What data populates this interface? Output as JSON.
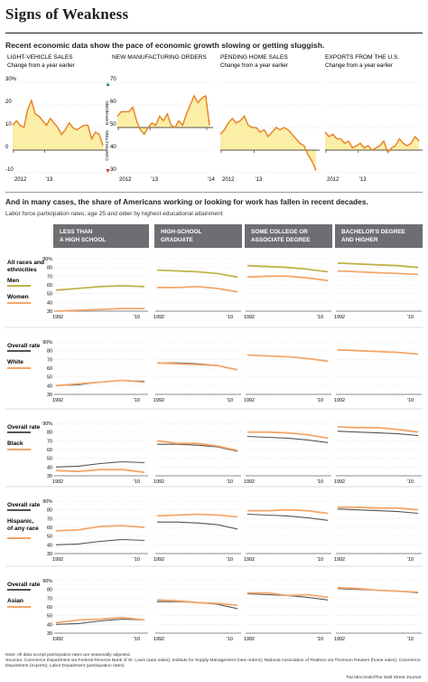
{
  "title": "Signs of Weakness",
  "subtitle1": "Recent economic data show the pace of economic growth slowing or getting sluggish.",
  "colors": {
    "fill_yellow": "#fbeea6",
    "line_orange": "#e8852b",
    "olive": "#c0b24a",
    "light_orange": "#f4a66a",
    "dark_gray": "#555555",
    "header_gray": "#6d6e71"
  },
  "top_charts": [
    {
      "title": "LIGHT-VEHICLE SALES",
      "subtitle": "Change from a year earlier",
      "yticks": [
        "30%",
        "20",
        "10",
        "0",
        "-10"
      ],
      "xlabels": [
        "2012",
        "'13"
      ],
      "ylim": [
        -10,
        30
      ],
      "chart_data": {
        "type": "area",
        "values": [
          11,
          13,
          11,
          10,
          18,
          22,
          16,
          15,
          13,
          11,
          14,
          12,
          10,
          7,
          9,
          12,
          10,
          9,
          10,
          11,
          11,
          5,
          8,
          7,
          2
        ]
      }
    },
    {
      "title": "NEW MANUFACTURING ORDERS",
      "yticks": [
        "70",
        "60",
        "50",
        "40",
        "30"
      ],
      "xlabels": [
        "2012",
        "'13",
        "'14"
      ],
      "ylim": [
        30,
        70
      ],
      "baseline": 50,
      "axis_label_up": "EXPANDING",
      "axis_label_down": "CONTRACTING",
      "chart_data": {
        "type": "area",
        "values": [
          55,
          57,
          57,
          57,
          59,
          53,
          49,
          47,
          50,
          52,
          51,
          55,
          53,
          56,
          51,
          50,
          53,
          51,
          56,
          60,
          64,
          61,
          63,
          64,
          51
        ]
      }
    },
    {
      "title": "PENDING HOME SALES",
      "subtitle": "Change from a year earlier",
      "yticks": [],
      "xlabels": [
        "2012",
        "'13"
      ],
      "ylim": [
        -10,
        30
      ],
      "chart_data": {
        "type": "area",
        "values": [
          7,
          9,
          12,
          14,
          12,
          13,
          15,
          11,
          10,
          10,
          8,
          9,
          6,
          8,
          10,
          9,
          10,
          9,
          7,
          5,
          3,
          2,
          -2,
          -5,
          -9
        ]
      }
    },
    {
      "title": "EXPORTS FROM THE U.S.",
      "subtitle": "Change from a year earlier",
      "yticks": [],
      "xlabels": [
        "2012",
        "'13"
      ],
      "ylim": [
        -10,
        30
      ],
      "chart_data": {
        "type": "area",
        "values": [
          8,
          6,
          7,
          5,
          5,
          3,
          4,
          1,
          2,
          3,
          1,
          2,
          0,
          1,
          2,
          4,
          -1,
          1,
          2,
          5,
          3,
          2,
          3,
          6,
          4
        ]
      }
    }
  ],
  "section2_title": "And in many cases, the share of Americans working or looking for work has fallen in recent decades.",
  "section2_note": "Labor force participation rates; age 25 and older by highest educational attainment",
  "column_headers": [
    {
      "line1": "LESS THAN",
      "line2": "A HIGH SCHOOL"
    },
    {
      "line1": "HIGH-SCHOOL",
      "line2": "GRADUATE"
    },
    {
      "line1": "SOME COLLEGE OR",
      "line2": "ASSOCIATE DEGREE"
    },
    {
      "line1": "BACHELOR'S DEGREE",
      "line2": "AND HIGHER"
    }
  ],
  "yticks_small": [
    "90%",
    "80",
    "70",
    "60",
    "50",
    "40",
    "30"
  ],
  "xticks_small": [
    "1992",
    "'10"
  ],
  "rows": [
    {
      "title_lines": [
        "All races and",
        "ethnicities"
      ],
      "label1": "Men",
      "label2": "Women",
      "chart_data": {
        "type": "line",
        "x": [
          1992,
          2014
        ],
        "series": [
          {
            "name": "Men",
            "panels": [
              [
                54,
                56,
                58,
                59,
                58
              ],
              [
                77,
                76,
                75,
                73,
                69
              ],
              [
                82,
                81,
                80,
                78,
                75
              ],
              [
                85,
                84,
                83,
                82,
                80
              ]
            ]
          },
          {
            "name": "Women",
            "panels": [
              [
                30,
                31,
                32,
                33,
                33
              ],
              [
                57,
                57,
                58,
                56,
                52
              ],
              [
                69,
                70,
                70,
                68,
                65
              ],
              [
                76,
                75,
                74,
                73,
                72
              ]
            ]
          }
        ]
      }
    },
    {
      "label1": "Overall rate",
      "label2": "White",
      "chart_data": {
        "type": "line",
        "x": [
          1992,
          2014
        ],
        "series": [
          {
            "name": "Overall rate",
            "panels": [
              [
                40,
                41,
                44,
                46,
                45
              ],
              [
                66,
                66,
                65,
                63,
                58
              ],
              [
                75,
                74,
                73,
                71,
                68
              ],
              [
                81,
                80,
                79,
                78,
                76
              ]
            ]
          },
          {
            "name": "White",
            "panels": [
              [
                40,
                42,
                44,
                46,
                44
              ],
              [
                66,
                65,
                64,
                63,
                58
              ],
              [
                75,
                74,
                73,
                71,
                68
              ],
              [
                81,
                80,
                79,
                78,
                76
              ]
            ]
          }
        ]
      }
    },
    {
      "label1": "Overall rate",
      "label2": "Black",
      "chart_data": {
        "type": "line",
        "x": [
          1992,
          2014
        ],
        "series": [
          {
            "name": "Overall rate",
            "panels": [
              [
                40,
                41,
                44,
                46,
                45
              ],
              [
                66,
                66,
                65,
                63,
                58
              ],
              [
                75,
                74,
                73,
                71,
                68
              ],
              [
                81,
                80,
                79,
                78,
                76
              ]
            ]
          },
          {
            "name": "Black",
            "panels": [
              [
                36,
                35,
                37,
                37,
                34
              ],
              [
                70,
                67,
                67,
                64,
                59
              ],
              [
                80,
                80,
                79,
                77,
                73
              ],
              [
                86,
                85,
                85,
                83,
                80
              ]
            ]
          }
        ]
      }
    },
    {
      "label1": "Overall rate",
      "label2_lines": [
        "Hispanic,",
        "of any race"
      ],
      "chart_data": {
        "type": "line",
        "x": [
          1992,
          2014
        ],
        "series": [
          {
            "name": "Overall rate",
            "panels": [
              [
                40,
                41,
                44,
                46,
                45
              ],
              [
                66,
                66,
                65,
                63,
                58
              ],
              [
                75,
                74,
                73,
                71,
                68
              ],
              [
                81,
                80,
                79,
                78,
                76
              ]
            ]
          },
          {
            "name": "Hispanic, of any race",
            "panels": [
              [
                56,
                57,
                61,
                62,
                60
              ],
              [
                73,
                74,
                75,
                74,
                72
              ],
              [
                79,
                79,
                80,
                79,
                76
              ],
              [
                83,
                83,
                82,
                82,
                80
              ]
            ]
          }
        ]
      }
    },
    {
      "label1": "Overall rate",
      "label2": "Asian",
      "chart_data": {
        "type": "line",
        "x": [
          1992,
          2014
        ],
        "series": [
          {
            "name": "Overall rate",
            "panels": [
              [
                40,
                41,
                44,
                46,
                45
              ],
              [
                66,
                66,
                65,
                63,
                58
              ],
              [
                75,
                74,
                73,
                71,
                68
              ],
              [
                81,
                80,
                79,
                78,
                76
              ]
            ]
          },
          {
            "name": "Asian",
            "panels": [
              [
                42,
                45,
                46,
                48,
                45
              ],
              [
                68,
                67,
                65,
                64,
                62
              ],
              [
                76,
                76,
                73,
                74,
                71
              ],
              [
                82,
                81,
                79,
                78,
                77
              ]
            ]
          }
        ]
      }
    }
  ],
  "footnote": "Note: All data except participation rates are seasonally adjusted.",
  "sources": "Sources: Commerce Department via Federal Reserve Bank of St. Louis (auto sales); Institute for Supply Management (new orders); National Association of Realtors via Thomson Reuters (home sales); Commerce Department (exports); Labor Department (participation rates)",
  "credit": "Pat Minczeski/The Wall Street Journal"
}
